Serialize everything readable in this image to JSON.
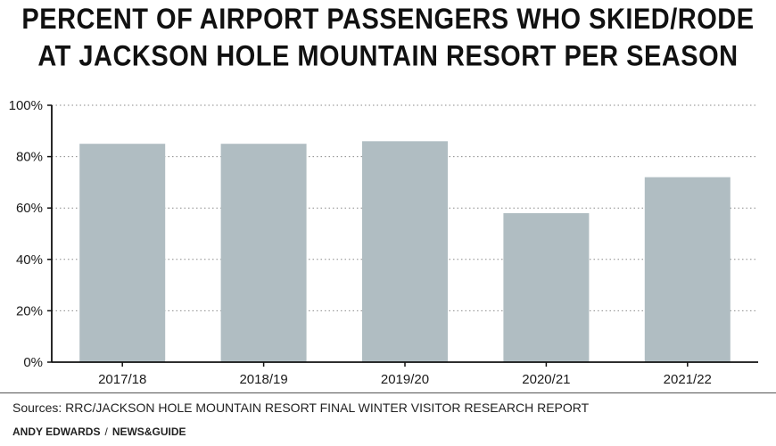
{
  "title_lines": [
    "PERCENT OF AIRPORT PASSENGERS WHO SKIED/RODE",
    "AT JACKSON HOLE MOUNTAIN RESORT PER SEASON"
  ],
  "chart_data": {
    "type": "bar",
    "title": "PERCENT OF AIRPORT PASSENGERS WHO SKIED/RODE AT JACKSON HOLE MOUNTAIN RESORT PER SEASON",
    "categories": [
      "2017/18",
      "2018/19",
      "2019/20",
      "2020/21",
      "2021/22"
    ],
    "values": [
      85,
      85,
      86,
      58,
      72
    ],
    "ylim": [
      0,
      100
    ],
    "yticks": [
      "0%",
      "20%",
      "40%",
      "60%",
      "80%",
      "100%"
    ],
    "grid": true,
    "bar_color": "#b0bdc2",
    "xlabel": "",
    "ylabel": ""
  },
  "footer": {
    "source": "Sources: RRC/JACKSON HOLE MOUNTAIN RESORT FINAL WINTER VISITOR RESEARCH REPORT",
    "author": "ANDY EDWARDS",
    "separator": "/",
    "outlet": "NEWS&GUIDE"
  }
}
